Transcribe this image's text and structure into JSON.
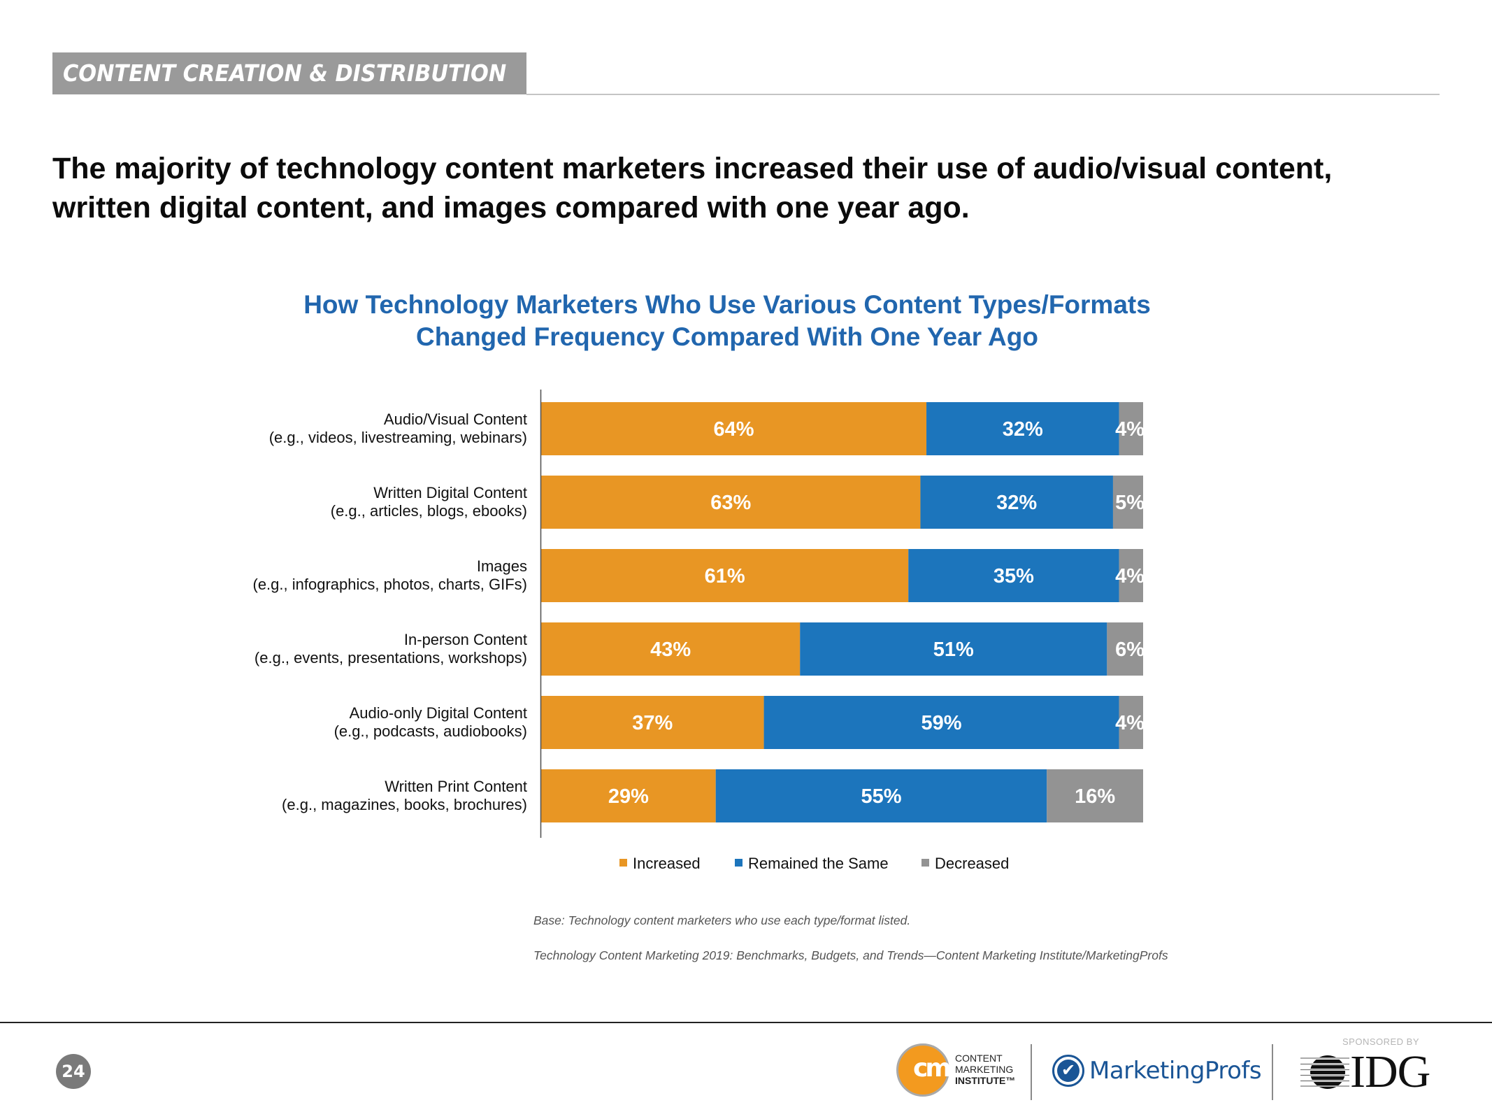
{
  "section_banner": "CONTENT CREATION & DISTRIBUTION",
  "headline": [
    "The majority of technology content marketers increased their use of audio/visual content,",
    "written digital content, and images compared with one year ago."
  ],
  "colors": {
    "increased": "#E89624",
    "remained": "#1C75BC",
    "decreased": "#939393",
    "title": "#2166AE"
  },
  "chart_data": {
    "type": "bar",
    "orientation": "horizontal",
    "stacked": true,
    "percent_stacked": true,
    "title": [
      "How Technology Marketers Who Use Various Content Types/Formats",
      "Changed Frequency Compared With One Year Ago"
    ],
    "xlabel": "",
    "ylabel": "",
    "xlim": [
      0,
      100
    ],
    "grid": false,
    "legend_position": "bottom",
    "categories": [
      [
        "Audio/Visual Content",
        "(e.g., videos, livestreaming, webinars)"
      ],
      [
        "Written Digital Content",
        "(e.g., articles, blogs, ebooks)"
      ],
      [
        "Images",
        "(e.g., infographics, photos, charts, GIFs)"
      ],
      [
        "In-person Content",
        "(e.g., events, presentations, workshops)"
      ],
      [
        "Audio-only Digital Content",
        "(e.g., podcasts, audiobooks)"
      ],
      [
        "Written Print Content",
        "(e.g., magazines, books, brochures)"
      ]
    ],
    "series": [
      {
        "name": "Increased",
        "color": "#E89624",
        "values": [
          64,
          63,
          61,
          43,
          37,
          29
        ]
      },
      {
        "name": "Remained the Same",
        "color": "#1C75BC",
        "values": [
          32,
          32,
          35,
          51,
          59,
          55
        ]
      },
      {
        "name": "Decreased",
        "color": "#939393",
        "values": [
          4,
          5,
          4,
          6,
          4,
          16
        ]
      }
    ],
    "value_suffix": "%"
  },
  "notes": {
    "base": "Base: Technology content marketers who use each type/format listed.",
    "source": "Technology Content Marketing 2019: Benchmarks, Budgets, and Trends—Content Marketing Institute/MarketingProfs"
  },
  "footer": {
    "page_number": "24",
    "cmi_logo_mark": "cm",
    "cmi_name": [
      "CONTENT",
      "MARKETING",
      "INSTITUTE™"
    ],
    "marketingprofs": "MarketingProfs",
    "sponsored_by": "SPONSORED BY",
    "idg": "IDG"
  }
}
